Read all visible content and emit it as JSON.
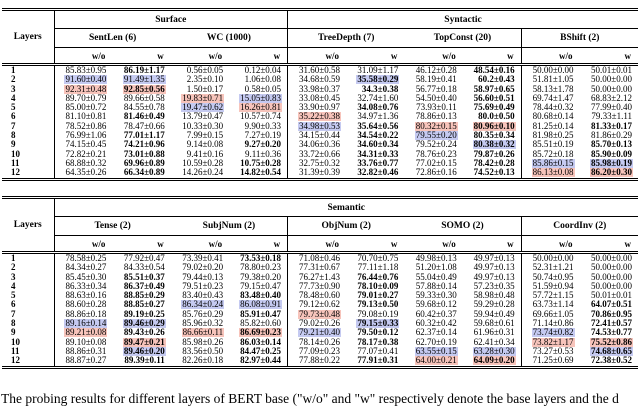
{
  "labels": {
    "layers": "Layers",
    "without": "w/o",
    "with_": "w"
  },
  "colors": {
    "highlight_pink": "#f7c4bb",
    "highlight_blue": "#c5caf1"
  },
  "caption": "The probing results for different layers of BERT base (\"w/o\" and \"w\" respectively denote the base layers and the d",
  "tables": [
    {
      "name": "surface-syntactic-table",
      "groups": [
        {
          "label": "Surface",
          "tasks": [
            "SentLen (6)",
            "WC (1000)"
          ]
        },
        {
          "label": "Syntactic",
          "tasks": [
            "TreeDepth (7)",
            "TopConst (20)",
            "BShift (2)"
          ]
        }
      ],
      "rows": [
        {
          "layer": "1",
          "cells": [
            {
              "t": "85.83±0.95"
            },
            {
              "t": "86.19±1.17",
              "b": 1
            },
            {
              "t": "0.56±0.05"
            },
            {
              "t": "0.12±0.04"
            },
            {
              "t": "31.60±0.58"
            },
            {
              "t": "31.09±1.17"
            },
            {
              "t": "46.12±0.28"
            },
            {
              "t": "48.54±0.16",
              "b": 1
            },
            {
              "t": "50.00±0.00"
            },
            {
              "t": "50.01±0.01"
            }
          ]
        },
        {
          "layer": "2",
          "cells": [
            {
              "t": "91.60±0.40",
              "h": "b"
            },
            {
              "t": "91.49±1.35",
              "h": "b"
            },
            {
              "t": "2.35±0.10"
            },
            {
              "t": "1.06±0.08"
            },
            {
              "t": "34.68±0.59"
            },
            {
              "t": "35.58±0.29",
              "b": 1,
              "h": "b"
            },
            {
              "t": "58.19±0.41"
            },
            {
              "t": "60.2±0.43",
              "b": 1
            },
            {
              "t": "51.81±1.05"
            },
            {
              "t": "50.00±0.00"
            }
          ]
        },
        {
          "layer": "3",
          "cells": [
            {
              "t": "92.31±0.48",
              "h": "p"
            },
            {
              "t": "92.85±0.56",
              "b": 1,
              "h": "p"
            },
            {
              "t": "1.50±0.17"
            },
            {
              "t": "0.58±0.05"
            },
            {
              "t": "33.98±0.37"
            },
            {
              "t": "34.3±0.38",
              "b": 1
            },
            {
              "t": "56.77±0.18"
            },
            {
              "t": "58.97±0.65",
              "b": 1
            },
            {
              "t": "58.13±1.78"
            },
            {
              "t": "50.00±0.00"
            }
          ]
        },
        {
          "layer": "4",
          "cells": [
            {
              "t": "89.70±0.79"
            },
            {
              "t": "89.66±0.58"
            },
            {
              "t": "19.83±0.71",
              "h": "p"
            },
            {
              "t": "15.05±0.83",
              "h": "b"
            },
            {
              "t": "33.08±0.45"
            },
            {
              "t": "32.74±1.60"
            },
            {
              "t": "54.50±0.40"
            },
            {
              "t": "56.60±0.51",
              "b": 1
            },
            {
              "t": "69.74±1.47"
            },
            {
              "t": "68.83±2.12"
            }
          ]
        },
        {
          "layer": "5",
          "cells": [
            {
              "t": "85.00±0.72"
            },
            {
              "t": "84.55±0.78"
            },
            {
              "t": "19.47±0.62",
              "h": "b"
            },
            {
              "t": "16.26±0.81",
              "h": "p"
            },
            {
              "t": "33.90±0.97"
            },
            {
              "t": "34.08±0.76",
              "b": 1
            },
            {
              "t": "73.93±0.11"
            },
            {
              "t": "75.69±0.49",
              "b": 1
            },
            {
              "t": "78.44±0.32"
            },
            {
              "t": "77.99±0.40"
            }
          ]
        },
        {
          "layer": "6",
          "cells": [
            {
              "t": "81.10±0.81"
            },
            {
              "t": "81.46±0.49",
              "b": 1
            },
            {
              "t": "13.79±0.47"
            },
            {
              "t": "10.57±0.74"
            },
            {
              "t": "35.22±0.38",
              "h": "p"
            },
            {
              "t": "34.97±1.36"
            },
            {
              "t": "78.86±0.13"
            },
            {
              "t": "80.0±0.50",
              "b": 1
            },
            {
              "t": "80.68±0.14"
            },
            {
              "t": "79.33±1.11"
            }
          ]
        },
        {
          "layer": "7",
          "cells": [
            {
              "t": "78.52±0.86"
            },
            {
              "t": "78.47±0.66"
            },
            {
              "t": "10.33±0.30"
            },
            {
              "t": "9.90±0.33"
            },
            {
              "t": "34.98±0.53",
              "h": "b"
            },
            {
              "t": "35.64±0.56",
              "b": 1
            },
            {
              "t": "80.32±0.15",
              "h": "p"
            },
            {
              "t": "80.96±0.10",
              "b": 1,
              "h": "p"
            },
            {
              "t": "81.25±0.14"
            },
            {
              "t": "81.33±0.17",
              "b": 1
            }
          ]
        },
        {
          "layer": "8",
          "cells": [
            {
              "t": "76.99±1.06"
            },
            {
              "t": "77.01±1.17",
              "b": 1
            },
            {
              "t": "7.99±0.15"
            },
            {
              "t": "7.27±0.19"
            },
            {
              "t": "34.15±0.44"
            },
            {
              "t": "34.54±0.22",
              "b": 1
            },
            {
              "t": "79.55±0.20",
              "h": "b"
            },
            {
              "t": "80.35±0.34",
              "b": 1
            },
            {
              "t": "81.98±0.25"
            },
            {
              "t": "81.86±0.29"
            }
          ]
        },
        {
          "layer": "9",
          "cells": [
            {
              "t": "74.15±0.45"
            },
            {
              "t": "74.21±0.96",
              "b": 1
            },
            {
              "t": "9.14±0.08"
            },
            {
              "t": "9.27±0.20",
              "b": 1
            },
            {
              "t": "34.06±0.36"
            },
            {
              "t": "34.60±0.34",
              "b": 1
            },
            {
              "t": "79.52±0.24"
            },
            {
              "t": "80.38±0.32",
              "b": 1,
              "h": "b"
            },
            {
              "t": "85.51±0.19"
            },
            {
              "t": "85.70±0.13",
              "b": 1
            }
          ]
        },
        {
          "layer": "10",
          "cells": [
            {
              "t": "72.82±0.21"
            },
            {
              "t": "73.01±0.88",
              "b": 1
            },
            {
              "t": "9.41±0.16"
            },
            {
              "t": "9.11±0.36"
            },
            {
              "t": "33.72±0.66"
            },
            {
              "t": "34.31±0.33",
              "b": 1
            },
            {
              "t": "78.76±0.23"
            },
            {
              "t": "79.87±0.26",
              "b": 1
            },
            {
              "t": "85.72±0.18"
            },
            {
              "t": "85.90±0.09",
              "b": 1
            }
          ]
        },
        {
          "layer": "11",
          "cells": [
            {
              "t": "68.88±0.32"
            },
            {
              "t": "69.96±0.89",
              "b": 1
            },
            {
              "t": "10.59±0.28"
            },
            {
              "t": "10.75±0.28",
              "b": 1
            },
            {
              "t": "32.75±0.32"
            },
            {
              "t": "33.76±0.77",
              "b": 1
            },
            {
              "t": "77.02±0.15"
            },
            {
              "t": "78.42±0.28",
              "b": 1
            },
            {
              "t": "85.86±0.15",
              "h": "b"
            },
            {
              "t": "85.98±0.19",
              "b": 1,
              "h": "b"
            }
          ]
        },
        {
          "layer": "12",
          "cells": [
            {
              "t": "64.35±0.26"
            },
            {
              "t": "66.34±0.89",
              "b": 1
            },
            {
              "t": "14.26±0.24"
            },
            {
              "t": "14.82±0.54",
              "b": 1
            },
            {
              "t": "31.39±0.39"
            },
            {
              "t": "32.82±0.46",
              "b": 1
            },
            {
              "t": "72.86±0.16"
            },
            {
              "t": "74.52±0.13",
              "b": 1
            },
            {
              "t": "86.13±0.08",
              "h": "p"
            },
            {
              "t": "86.20±0.30",
              "b": 1,
              "h": "p"
            }
          ]
        }
      ]
    },
    {
      "name": "semantic-table",
      "groups": [
        {
          "label": "Semantic",
          "tasks": [
            "Tense (2)",
            "SubjNum (2)",
            "ObjNum (2)",
            "SOMO (2)",
            "CoordInv (2)"
          ]
        }
      ],
      "rows": [
        {
          "layer": "1",
          "cells": [
            {
              "t": "78.58±0.25"
            },
            {
              "t": "77.92±0.47"
            },
            {
              "t": "73.39±0.41"
            },
            {
              "t": "73.53±0.18",
              "b": 1
            },
            {
              "t": "71.08±0.46"
            },
            {
              "t": "70.70±0.75"
            },
            {
              "t": "49.98±0.13"
            },
            {
              "t": "49.97±0.13"
            },
            {
              "t": "50.00±0.00"
            },
            {
              "t": "50.00±0.00"
            }
          ]
        },
        {
          "layer": "2",
          "cells": [
            {
              "t": "84.34±0.27"
            },
            {
              "t": "84.33±0.54"
            },
            {
              "t": "79.02±0.20"
            },
            {
              "t": "78.80±0.23"
            },
            {
              "t": "77.31±0.67"
            },
            {
              "t": "77.11±1.18"
            },
            {
              "t": "51.20±1.08"
            },
            {
              "t": "49.97±0.13"
            },
            {
              "t": "52.31±1.21"
            },
            {
              "t": "50.00±0.00"
            }
          ]
        },
        {
          "layer": "3",
          "cells": [
            {
              "t": "85.45±0.30"
            },
            {
              "t": "85.51±0.37",
              "b": 1
            },
            {
              "t": "79.44±0.13"
            },
            {
              "t": "79.38±0.20"
            },
            {
              "t": "76.27±1.43"
            },
            {
              "t": "76.44±0.76",
              "b": 1
            },
            {
              "t": "55.04±0.49"
            },
            {
              "t": "49.97±0.13"
            },
            {
              "t": "50.74±0.95"
            },
            {
              "t": "50.00±0.00"
            }
          ]
        },
        {
          "layer": "4",
          "cells": [
            {
              "t": "86.33±0.34"
            },
            {
              "t": "86.37±0.49",
              "b": 1
            },
            {
              "t": "79.51±0.23"
            },
            {
              "t": "79.15±0.47"
            },
            {
              "t": "77.73±0.90"
            },
            {
              "t": "78.10±0.09",
              "b": 1
            },
            {
              "t": "57.88±0.14"
            },
            {
              "t": "57.23±0.35"
            },
            {
              "t": "51.59±0.94"
            },
            {
              "t": "50.00±0.00"
            }
          ]
        },
        {
          "layer": "5",
          "cells": [
            {
              "t": "88.63±0.16"
            },
            {
              "t": "88.85±0.29",
              "b": 1
            },
            {
              "t": "83.40±0.43"
            },
            {
              "t": "83.48±0.40",
              "b": 1
            },
            {
              "t": "78.48±0.60"
            },
            {
              "t": "79.01±0.27",
              "b": 1
            },
            {
              "t": "59.33±0.30"
            },
            {
              "t": "58.98±0.48"
            },
            {
              "t": "57.72±1.15"
            },
            {
              "t": "50.01±0.01"
            }
          ]
        },
        {
          "layer": "6",
          "cells": [
            {
              "t": "88.60±0.28"
            },
            {
              "t": "88.85±0.27",
              "b": 1
            },
            {
              "t": "86.34±0.24",
              "h": "b"
            },
            {
              "t": "86.08±0.91",
              "h": "b"
            },
            {
              "t": "79.12±0.62"
            },
            {
              "t": "79.13±0.50",
              "b": 1
            },
            {
              "t": "59.68±0.12"
            },
            {
              "t": "59.29±0.28"
            },
            {
              "t": "63.73±1.14"
            },
            {
              "t": "64.07±0.51",
              "b": 1
            }
          ]
        },
        {
          "layer": "7",
          "cells": [
            {
              "t": "88.86±0.18"
            },
            {
              "t": "89.19±0.25",
              "b": 1
            },
            {
              "t": "85.76±0.29"
            },
            {
              "t": "85.91±0.47",
              "b": 1
            },
            {
              "t": "79.73±0.48",
              "h": "p"
            },
            {
              "t": "79.08±0.19"
            },
            {
              "t": "60.42±0.37"
            },
            {
              "t": "59.94±0.49"
            },
            {
              "t": "69.66±1.05"
            },
            {
              "t": "70.86±0.95",
              "b": 1
            }
          ]
        },
        {
          "layer": "8",
          "cells": [
            {
              "t": "89.16±0.14",
              "h": "b"
            },
            {
              "t": "89.46±0.29",
              "b": 1,
              "h": "b"
            },
            {
              "t": "85.96±0.32"
            },
            {
              "t": "85.82±0.60"
            },
            {
              "t": "79.02±0.26"
            },
            {
              "t": "79.15±0.33",
              "b": 1,
              "h": "b"
            },
            {
              "t": "60.32±0.42"
            },
            {
              "t": "59.68±0.61"
            },
            {
              "t": "71.14±0.86"
            },
            {
              "t": "72.41±0.57",
              "b": 1
            }
          ]
        },
        {
          "layer": "9",
          "cells": [
            {
              "t": "89.21±0.08",
              "h": "p"
            },
            {
              "t": "89.43±0.26",
              "b": 1
            },
            {
              "t": "86.66±0.11",
              "h": "p"
            },
            {
              "t": "86.69±0.23",
              "b": 1,
              "h": "p"
            },
            {
              "t": "79.21±0.40",
              "h": "b"
            },
            {
              "t": "79.50±0.12",
              "b": 1
            },
            {
              "t": "62.37±0.14"
            },
            {
              "t": "61.96±0.31"
            },
            {
              "t": "73.74±0.82",
              "h": "b"
            },
            {
              "t": "74.53±0.77",
              "b": 1
            }
          ]
        },
        {
          "layer": "10",
          "cells": [
            {
              "t": "89.10±0.08"
            },
            {
              "t": "89.47±0.21",
              "b": 1,
              "h": "p"
            },
            {
              "t": "85.98±0.26"
            },
            {
              "t": "86.03±0.14",
              "b": 1
            },
            {
              "t": "78.14±0.26"
            },
            {
              "t": "78.17±0.38",
              "b": 1
            },
            {
              "t": "62.70±0.19"
            },
            {
              "t": "62.41±0.34"
            },
            {
              "t": "73.82±1.17",
              "h": "p"
            },
            {
              "t": "75.52±0.86",
              "b": 1,
              "h": "p"
            }
          ]
        },
        {
          "layer": "11",
          "cells": [
            {
              "t": "88.86±0.31"
            },
            {
              "t": "89.46±0.20",
              "b": 1,
              "h": "b"
            },
            {
              "t": "83.56±0.50"
            },
            {
              "t": "84.47±0.25",
              "b": 1
            },
            {
              "t": "77.09±0.23"
            },
            {
              "t": "77.07±0.41"
            },
            {
              "t": "63.55±0.15",
              "h": "b"
            },
            {
              "t": "63.28±0.30",
              "h": "b"
            },
            {
              "t": "73.27±0.53"
            },
            {
              "t": "74.68±0.65",
              "b": 1,
              "h": "b"
            }
          ]
        },
        {
          "layer": "12",
          "cells": [
            {
              "t": "88.87±0.27"
            },
            {
              "t": "89.39±0.11",
              "b": 1
            },
            {
              "t": "82.26±0.18"
            },
            {
              "t": "82.97±0.44",
              "b": 1
            },
            {
              "t": "77.88±0.22"
            },
            {
              "t": "77.91±0.31",
              "b": 1
            },
            {
              "t": "64.00±0.21",
              "h": "p"
            },
            {
              "t": "64.09±0.20",
              "b": 1,
              "h": "p"
            },
            {
              "t": "71.25±0.69"
            },
            {
              "t": "72.38±0.52",
              "b": 1
            }
          ]
        }
      ]
    }
  ]
}
